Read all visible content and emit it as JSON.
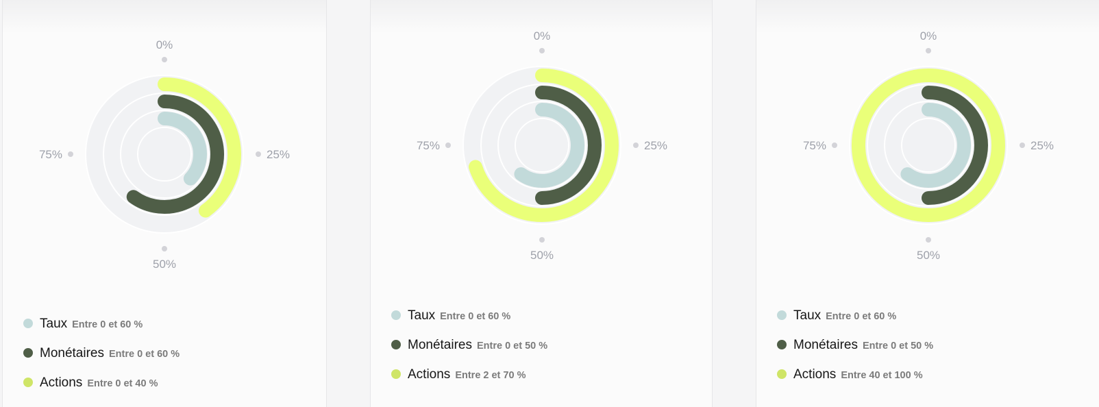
{
  "colors": {
    "taux": "#c2dada",
    "monetaires": "#4f5e47",
    "actions": "#eaff79",
    "actions_dot": "#cfe567",
    "track": "#f1f2f4",
    "tick_dot": "#d3d3d8"
  },
  "chart_data": [
    {
      "type": "radial-bar",
      "tick_labels": [
        "0%",
        "25%",
        "50%",
        "75%"
      ],
      "series": [
        {
          "name": "Taux",
          "range": "Entre 0 et 60 %",
          "value": 37
        },
        {
          "name": "Monétaires",
          "range": "Entre 0 et 60 %",
          "value": 60
        },
        {
          "name": "Actions",
          "range": "Entre 0 et 40 %",
          "value": 40
        }
      ]
    },
    {
      "type": "radial-bar",
      "tick_labels": [
        "0%",
        "25%",
        "50%",
        "75%"
      ],
      "series": [
        {
          "name": "Taux",
          "range": "Entre 0 et 60 %",
          "value": 60
        },
        {
          "name": "Monétaires",
          "range": "Entre 0 et 50 %",
          "value": 50
        },
        {
          "name": "Actions",
          "range": "Entre 2 et 70 %",
          "value": 70
        }
      ]
    },
    {
      "type": "radial-bar",
      "tick_labels": [
        "0%",
        "25%",
        "50%",
        "75%"
      ],
      "series": [
        {
          "name": "Taux",
          "range": "Entre 0 et 60 %",
          "value": 60
        },
        {
          "name": "Monétaires",
          "range": "Entre 0 et 50 %",
          "value": 50
        },
        {
          "name": "Actions",
          "range": "Entre 40 et 100 %",
          "value": 100
        }
      ]
    }
  ]
}
